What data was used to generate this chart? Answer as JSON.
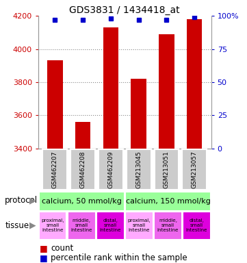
{
  "title": "GDS3831 / 1434418_at",
  "samples": [
    "GSM462207",
    "GSM462208",
    "GSM462209",
    "GSM213045",
    "GSM213051",
    "GSM213057"
  ],
  "counts": [
    3930,
    3560,
    4130,
    3820,
    4090,
    4180
  ],
  "percentile_ranks": [
    97,
    97,
    98,
    97,
    97,
    99
  ],
  "ylim": [
    3400,
    4200
  ],
  "y_ticks": [
    3400,
    3600,
    3800,
    4000,
    4200
  ],
  "right_yticks": [
    0,
    25,
    50,
    75,
    100
  ],
  "right_ylabels": [
    "0",
    "25",
    "50",
    "75",
    "100%"
  ],
  "bar_color": "#cc0000",
  "dot_color": "#0000cc",
  "protocol_labels": [
    "calcium, 50 mmol/kg",
    "calcium, 150 mmol/kg"
  ],
  "protocol_color": "#99ff99",
  "tissue_labels": [
    "proximal,\nsmall\nintestine",
    "middle,\nsmall\nintestine",
    "distal,\nsmall\nintestine",
    "proximal,\nsmall\nintestine",
    "middle,\nsmall\nintestine",
    "distal,\nsmall\nintestine"
  ],
  "tissue_colors": [
    "#ffaaff",
    "#ee66ee",
    "#dd00dd",
    "#ffaaff",
    "#ee66ee",
    "#dd00dd"
  ],
  "sample_bg_color": "#cccccc",
  "legend_count_color": "#cc0000",
  "legend_dot_color": "#0000cc",
  "left_label_color": "#cc0000",
  "right_label_color": "#0000cc",
  "grid_color": "#888888",
  "bg_color": "#ffffff"
}
